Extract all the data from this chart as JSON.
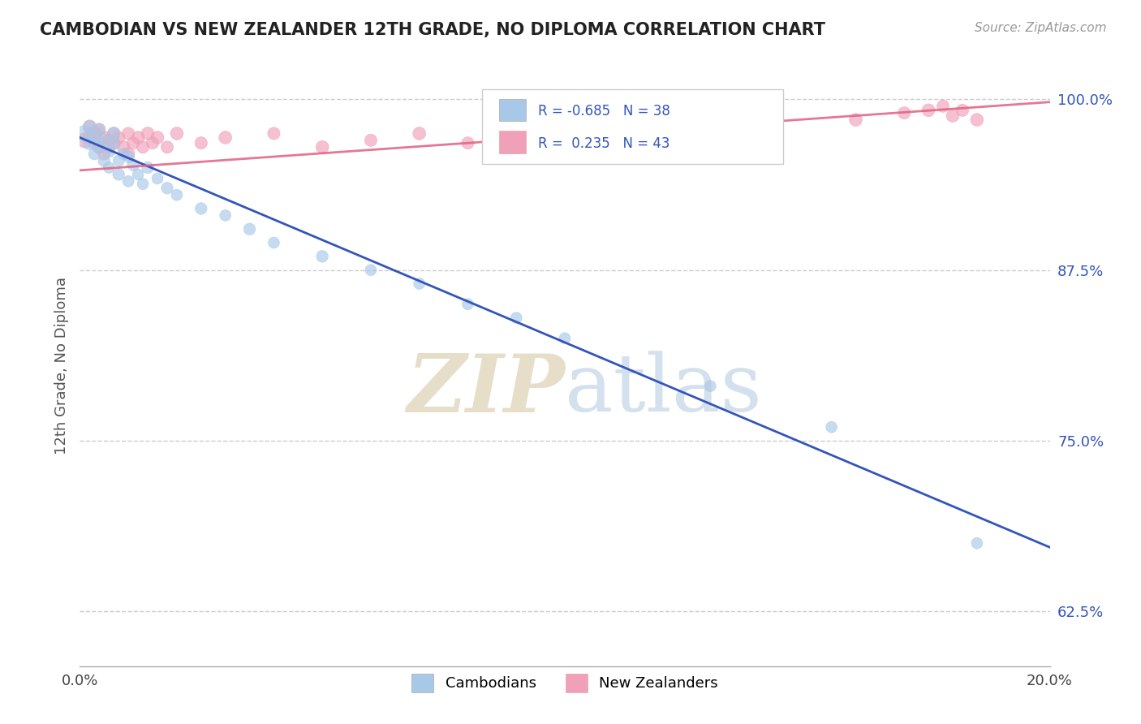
{
  "title": "CAMBODIAN VS NEW ZEALANDER 12TH GRADE, NO DIPLOMA CORRELATION CHART",
  "source": "Source: ZipAtlas.com",
  "ylabel": "12th Grade, No Diploma",
  "legend_cambodians": "Cambodians",
  "legend_new_zealanders": "New Zealanders",
  "r_cambodian": -0.685,
  "n_cambodian": 38,
  "r_new_zealander": 0.235,
  "n_new_zealander": 43,
  "blue_color": "#A8C8E8",
  "pink_color": "#F0A0B8",
  "blue_line_color": "#3355BB",
  "pink_line_color": "#E06080",
  "xlim": [
    0.0,
    0.2
  ],
  "ylim": [
    0.585,
    1.025
  ],
  "yticks": [
    0.625,
    0.75,
    0.875,
    1.0
  ],
  "ytick_labels": [
    "62.5%",
    "75.0%",
    "87.5%",
    "100.0%"
  ],
  "blue_line_x0": 0.0,
  "blue_line_y0": 0.972,
  "blue_line_x1": 0.2,
  "blue_line_y1": 0.672,
  "pink_line_x0": 0.0,
  "pink_line_y0": 0.948,
  "pink_line_x1": 0.2,
  "pink_line_y1": 0.998,
  "cambodian_x": [
    0.001,
    0.002,
    0.002,
    0.003,
    0.003,
    0.004,
    0.004,
    0.005,
    0.005,
    0.006,
    0.006,
    0.007,
    0.007,
    0.008,
    0.008,
    0.009,
    0.01,
    0.01,
    0.011,
    0.012,
    0.013,
    0.014,
    0.016,
    0.018,
    0.02,
    0.025,
    0.03,
    0.035,
    0.04,
    0.05,
    0.06,
    0.07,
    0.08,
    0.09,
    0.1,
    0.13,
    0.155,
    0.185
  ],
  "cambodian_y": [
    0.975,
    0.968,
    0.98,
    0.972,
    0.96,
    0.965,
    0.978,
    0.97,
    0.955,
    0.962,
    0.95,
    0.968,
    0.975,
    0.955,
    0.945,
    0.96,
    0.958,
    0.94,
    0.952,
    0.945,
    0.938,
    0.95,
    0.942,
    0.935,
    0.93,
    0.92,
    0.915,
    0.905,
    0.895,
    0.885,
    0.875,
    0.865,
    0.85,
    0.84,
    0.825,
    0.79,
    0.76,
    0.675
  ],
  "cambodian_sizes": [
    200,
    150,
    120,
    140,
    110,
    130,
    100,
    120,
    110,
    120,
    100,
    110,
    120,
    100,
    110,
    100,
    110,
    100,
    110,
    100,
    100,
    110,
    100,
    110,
    100,
    110,
    100,
    110,
    100,
    110,
    100,
    100,
    100,
    100,
    100,
    100,
    100,
    100
  ],
  "new_zealander_x": [
    0.001,
    0.002,
    0.002,
    0.003,
    0.003,
    0.004,
    0.004,
    0.005,
    0.005,
    0.006,
    0.006,
    0.007,
    0.007,
    0.008,
    0.009,
    0.01,
    0.01,
    0.011,
    0.012,
    0.013,
    0.014,
    0.015,
    0.016,
    0.018,
    0.02,
    0.025,
    0.03,
    0.04,
    0.05,
    0.06,
    0.07,
    0.08,
    0.09,
    0.1,
    0.12,
    0.14,
    0.16,
    0.17,
    0.175,
    0.178,
    0.18,
    0.182,
    0.185
  ],
  "new_zealander_y": [
    0.97,
    0.98,
    0.972,
    0.968,
    0.975,
    0.978,
    0.965,
    0.972,
    0.96,
    0.97,
    0.965,
    0.975,
    0.968,
    0.972,
    0.965,
    0.975,
    0.96,
    0.968,
    0.972,
    0.965,
    0.975,
    0.968,
    0.972,
    0.965,
    0.975,
    0.968,
    0.972,
    0.975,
    0.965,
    0.97,
    0.975,
    0.968,
    0.975,
    0.972,
    0.978,
    0.982,
    0.985,
    0.99,
    0.992,
    0.995,
    0.988,
    0.992,
    0.985
  ],
  "new_zealander_sizes": [
    180,
    140,
    150,
    130,
    160,
    120,
    140,
    130,
    120,
    130,
    120,
    130,
    140,
    120,
    130,
    120,
    130,
    120,
    130,
    120,
    130,
    120,
    130,
    120,
    130,
    120,
    130,
    120,
    130,
    120,
    130,
    120,
    130,
    120,
    130,
    120,
    130,
    120,
    130,
    120,
    130,
    120,
    130
  ]
}
